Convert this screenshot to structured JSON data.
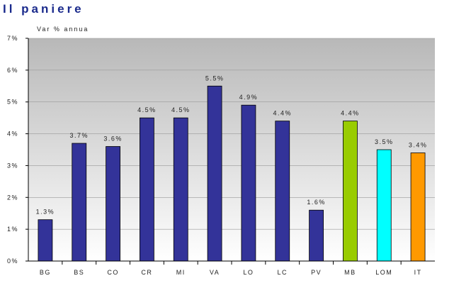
{
  "title": "Il paniere",
  "unit_label": "Var % annua",
  "chart_data": {
    "type": "bar",
    "categories": [
      "BG",
      "BS",
      "CO",
      "CR",
      "MI",
      "VA",
      "LO",
      "LC",
      "PV",
      "MB",
      "LOM",
      "IT"
    ],
    "values": [
      1.3,
      3.7,
      3.6,
      4.5,
      4.5,
      5.5,
      4.9,
      4.4,
      1.6,
      4.4,
      3.5,
      3.4
    ],
    "data_labels": [
      "1.3%",
      "3.7%",
      "3.6%",
      "4.5%",
      "4.5%",
      "5.5%",
      "4.9%",
      "4.4%",
      "1.6%",
      "4.4%",
      "3.5%",
      "3.4%"
    ],
    "bar_colors": [
      "#333399",
      "#333399",
      "#333399",
      "#333399",
      "#333399",
      "#333399",
      "#333399",
      "#333399",
      "#333399",
      "#99cc00",
      "#00ffff",
      "#ff9900"
    ],
    "y_ticks": [
      "0%",
      "1%",
      "2%",
      "3%",
      "4%",
      "5%",
      "6%",
      "7%"
    ],
    "ylim": [
      0,
      7
    ],
    "grid": true,
    "plot_background": "gradient gray to white"
  }
}
